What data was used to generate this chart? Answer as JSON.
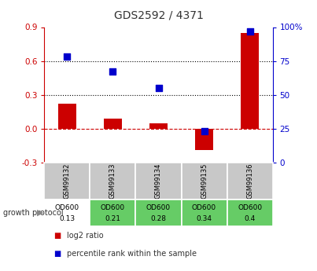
{
  "title": "GDS2592 / 4371",
  "samples": [
    "GSM99132",
    "GSM99133",
    "GSM99134",
    "GSM99135",
    "GSM99136"
  ],
  "log2_ratio": [
    0.22,
    0.09,
    0.05,
    -0.19,
    0.85
  ],
  "percentile_rank": [
    78,
    67,
    55,
    23,
    97
  ],
  "protocol_label": "OD600",
  "protocol_values": [
    "0.13",
    "0.21",
    "0.28",
    "0.34",
    "0.4"
  ],
  "cell_colors_row1": [
    "#c8c8c8",
    "#c8c8c8",
    "#c8c8c8",
    "#c8c8c8",
    "#c8c8c8"
  ],
  "cell_colors_row2": [
    "#ffffff",
    "#66cc66",
    "#66cc66",
    "#66cc66",
    "#66cc66"
  ],
  "left_axis_ticks": [
    -0.3,
    0.0,
    0.3,
    0.6,
    0.9
  ],
  "right_axis_ticks": [
    0,
    25,
    50,
    75,
    100
  ],
  "left_axis_label_color": "#cc0000",
  "right_axis_label_color": "#0000cc",
  "bar_color_red": "#cc0000",
  "dot_color_blue": "#0000cc",
  "hline_color": "#cc0000",
  "dotted_line_color": "#000000",
  "bg_color": "#ffffff",
  "legend_red_label": "log2 ratio",
  "legend_blue_label": "percentile rank within the sample",
  "growth_protocol_label": "growth protocol",
  "bar_width": 0.4,
  "ylim_left": [
    -0.3,
    0.9
  ],
  "ylim_right": [
    0,
    100
  ]
}
